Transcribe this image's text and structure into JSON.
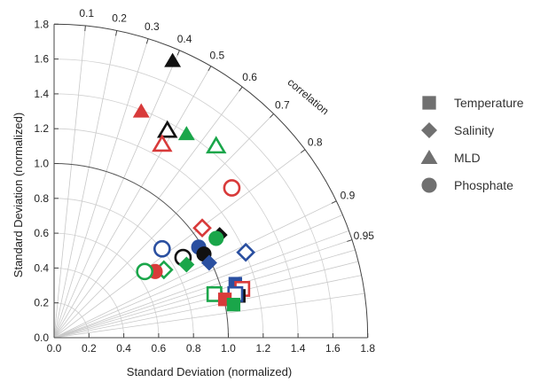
{
  "chart_data": {
    "type": "scatter",
    "subtype": "taylor-diagram",
    "xlabel": "Standard Deviation (normalized)",
    "ylabel": "Standard Deviation (normalized)",
    "corr_axis_label": "correlation",
    "xlim": [
      0,
      1.8
    ],
    "ylim": [
      0,
      1.8
    ],
    "std_ticks": [
      "0.0",
      "0.2",
      "0.4",
      "0.6",
      "0.8",
      "1.0",
      "1.2",
      "1.4",
      "1.6",
      "1.8"
    ],
    "corr_ticks": [
      {
        "value": 0.1,
        "label": "0.1"
      },
      {
        "value": 0.2,
        "label": "0.2"
      },
      {
        "value": 0.3,
        "label": "0.3"
      },
      {
        "value": 0.4,
        "label": "0.4"
      },
      {
        "value": 0.5,
        "label": "0.5"
      },
      {
        "value": 0.6,
        "label": "0.6"
      },
      {
        "value": 0.7,
        "label": "0.7"
      },
      {
        "value": 0.8,
        "label": "0.8"
      },
      {
        "value": 0.9,
        "label": "0.9"
      },
      {
        "value": 0.95,
        "label": "0.95"
      }
    ],
    "extra_corr_lines": [
      0.92,
      0.94,
      0.96,
      0.97,
      0.98,
      0.99
    ],
    "reference_std": 1.0,
    "colors": {
      "black": "#111111",
      "red": "#d83a3a",
      "green": "#1aa64a",
      "blue": "#2a4fa0"
    },
    "legend": [
      {
        "label": "Temperature",
        "marker": "square"
      },
      {
        "label": "Salinity",
        "marker": "diamond"
      },
      {
        "label": "MLD",
        "marker": "triangle"
      },
      {
        "label": "Phosphate",
        "marker": "circle"
      }
    ],
    "series": [
      {
        "variable": "MLD",
        "marker": "triangle",
        "color": "black",
        "filled": true,
        "x": 0.68,
        "y": 1.59
      },
      {
        "variable": "MLD",
        "marker": "triangle",
        "color": "red",
        "filled": true,
        "x": 0.5,
        "y": 1.3
      },
      {
        "variable": "MLD",
        "marker": "triangle",
        "color": "black",
        "filled": false,
        "x": 0.65,
        "y": 1.19
      },
      {
        "variable": "MLD",
        "marker": "triangle",
        "color": "green",
        "filled": true,
        "x": 0.76,
        "y": 1.17
      },
      {
        "variable": "MLD",
        "marker": "triangle",
        "color": "red",
        "filled": false,
        "x": 0.62,
        "y": 1.11
      },
      {
        "variable": "MLD",
        "marker": "triangle",
        "color": "green",
        "filled": false,
        "x": 0.93,
        "y": 1.1
      },
      {
        "variable": "Phosphate",
        "marker": "circle",
        "color": "red",
        "filled": false,
        "x": 1.02,
        "y": 0.86
      },
      {
        "variable": "Salinity",
        "marker": "diamond",
        "color": "red",
        "filled": false,
        "x": 0.85,
        "y": 0.63
      },
      {
        "variable": "Salinity",
        "marker": "diamond",
        "color": "black",
        "filled": true,
        "x": 0.95,
        "y": 0.59
      },
      {
        "variable": "Phosphate",
        "marker": "circle",
        "color": "green",
        "filled": true,
        "x": 0.93,
        "y": 0.57
      },
      {
        "variable": "Phosphate",
        "marker": "circle",
        "color": "blue",
        "filled": false,
        "x": 0.62,
        "y": 0.51
      },
      {
        "variable": "Salinity",
        "marker": "diamond",
        "color": "blue",
        "filled": false,
        "x": 1.1,
        "y": 0.49
      },
      {
        "variable": "Phosphate",
        "marker": "circle",
        "color": "blue",
        "filled": true,
        "x": 0.83,
        "y": 0.52
      },
      {
        "variable": "Phosphate",
        "marker": "circle",
        "color": "black",
        "filled": true,
        "x": 0.86,
        "y": 0.48
      },
      {
        "variable": "Salinity",
        "marker": "diamond",
        "color": "blue",
        "filled": true,
        "x": 0.89,
        "y": 0.43
      },
      {
        "variable": "Phosphate",
        "marker": "circle",
        "color": "black",
        "filled": false,
        "x": 0.74,
        "y": 0.46
      },
      {
        "variable": "Salinity",
        "marker": "diamond",
        "color": "green",
        "filled": true,
        "x": 0.76,
        "y": 0.42
      },
      {
        "variable": "Salinity",
        "marker": "diamond",
        "color": "green",
        "filled": false,
        "x": 0.63,
        "y": 0.39
      },
      {
        "variable": "Phosphate",
        "marker": "circle",
        "color": "red",
        "filled": true,
        "x": 0.58,
        "y": 0.38
      },
      {
        "variable": "Phosphate",
        "marker": "circle",
        "color": "green",
        "filled": false,
        "x": 0.52,
        "y": 0.38
      },
      {
        "variable": "Temperature",
        "marker": "square",
        "color": "blue",
        "filled": true,
        "x": 1.04,
        "y": 0.31
      },
      {
        "variable": "Temperature",
        "marker": "square",
        "color": "red",
        "filled": false,
        "x": 1.08,
        "y": 0.28
      },
      {
        "variable": "Temperature",
        "marker": "square",
        "color": "green",
        "filled": false,
        "x": 0.92,
        "y": 0.25
      },
      {
        "variable": "Temperature",
        "marker": "square",
        "color": "black",
        "filled": true,
        "x": 1.06,
        "y": 0.24
      },
      {
        "variable": "Temperature",
        "marker": "square",
        "color": "blue",
        "filled": false,
        "x": 1.04,
        "y": 0.25
      },
      {
        "variable": "Temperature",
        "marker": "square",
        "color": "red",
        "filled": true,
        "x": 0.98,
        "y": 0.22
      },
      {
        "variable": "Temperature",
        "marker": "square",
        "color": "green",
        "filled": true,
        "x": 1.03,
        "y": 0.19
      }
    ]
  }
}
